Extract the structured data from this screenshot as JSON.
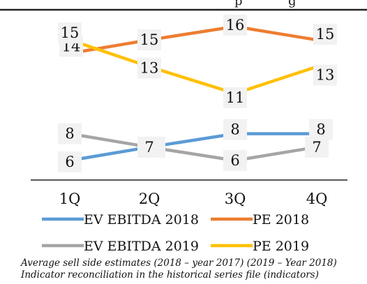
{
  "chart_data": {
    "type": "line",
    "title": "",
    "title_fragment": "p",
    "title_fragment_2": "g",
    "xlabel": "",
    "ylabel": "",
    "categories": [
      "1Q",
      "2Q",
      "3Q",
      "4Q"
    ],
    "series": [
      {
        "name": "EV EBITDA 2018",
        "color": "#5b9bd5",
        "values": [
          6,
          7,
          8,
          8
        ]
      },
      {
        "name": "PE 2018",
        "color": "#ed7d31",
        "values": [
          14,
          15,
          16,
          15
        ]
      },
      {
        "name": "EV EBITDA 2019",
        "color": "#a5a5a5",
        "values": [
          8,
          7,
          6,
          7
        ]
      },
      {
        "name": "PE 2019",
        "color": "#ffc000",
        "values": [
          15,
          13,
          11,
          13
        ]
      }
    ],
    "data_labels": true,
    "grid": false,
    "legend_position": "bottom",
    "notes": [
      "Average sell side estimates (2018 – year 2017) (2019 – Year 2018)",
      "Indicator reconciliation in the historical series file (indicators)"
    ]
  }
}
